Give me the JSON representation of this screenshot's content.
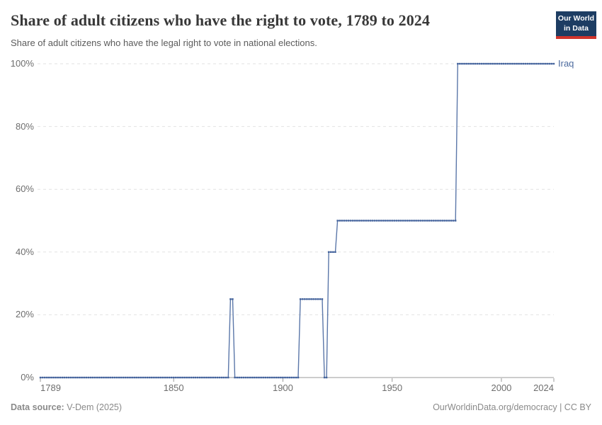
{
  "header": {
    "title": "Share of adult citizens who have the right to vote, 1789 to 2024",
    "subtitle": "Share of adult citizens who have the legal right to vote in national elections.",
    "logo": {
      "line1": "Our World",
      "line2": "in Data",
      "bg_color": "#1d3d63",
      "accent_color": "#d0342c"
    }
  },
  "chart_data": {
    "type": "line",
    "title": "Share of adult citizens who have the right to vote, 1789 to 2024",
    "xlabel": "",
    "ylabel": "",
    "xlim": [
      1789,
      2024
    ],
    "ylim": [
      0,
      100
    ],
    "x_ticks": [
      1789,
      1850,
      1900,
      1950,
      2000,
      2024
    ],
    "y_ticks": [
      0,
      20,
      40,
      60,
      80,
      100
    ],
    "y_tick_suffix": "%",
    "grid": "horizontal-dashed",
    "grid_color": "#e2e2e2",
    "axis_color": "#999999",
    "series": [
      {
        "name": "Iraq",
        "color": "#5b77a9",
        "marker_color": "#44639c",
        "steps": [
          {
            "from": 1789,
            "to": 1875,
            "value": 0
          },
          {
            "from": 1876,
            "to": 1877,
            "value": 25
          },
          {
            "from": 1878,
            "to": 1907,
            "value": 0
          },
          {
            "from": 1908,
            "to": 1918,
            "value": 25
          },
          {
            "from": 1919,
            "to": 1920,
            "value": 0
          },
          {
            "from": 1921,
            "to": 1924,
            "value": 40
          },
          {
            "from": 1925,
            "to": 1979,
            "value": 50
          },
          {
            "from": 1980,
            "to": 2024,
            "value": 100
          }
        ]
      }
    ],
    "legend_position": "end-of-line-right"
  },
  "footer": {
    "source_label": "Data source:",
    "source_value": " V-Dem (2025)",
    "credit": "OurWorldinData.org/democracy | CC BY"
  }
}
